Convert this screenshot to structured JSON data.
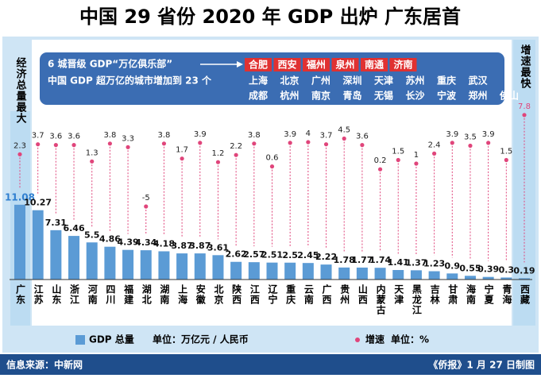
{
  "chart_data": {
    "type": "bar",
    "title": "中国 29 省份 2020 年 GDP 出炉  广东居首",
    "categories": [
      "广东",
      "江苏",
      "山东",
      "浙江",
      "河南",
      "四川",
      "福建",
      "湖北",
      "湖南",
      "上海",
      "安徽",
      "北京",
      "陕西",
      "江西",
      "辽宁",
      "重庆",
      "云南",
      "广西",
      "贵州",
      "山西",
      "内蒙古",
      "天津",
      "黑龙江",
      "吉林",
      "甘肃",
      "海南",
      "宁夏",
      "青海",
      "西藏"
    ],
    "series": [
      {
        "name": "GDP 总量",
        "unit": "单位：万亿元 / 人民币",
        "color": "#5b9bd5",
        "values": [
          11.08,
          10.27,
          7.31,
          6.46,
          5.5,
          4.86,
          4.39,
          4.34,
          4.18,
          3.87,
          3.87,
          3.61,
          2.62,
          2.57,
          2.51,
          2.5,
          2.45,
          2.22,
          1.78,
          1.77,
          1.74,
          1.41,
          1.37,
          1.23,
          0.9,
          0.55,
          0.39,
          0.3,
          0.19
        ]
      },
      {
        "name": "增速",
        "unit": "单位：%",
        "color": "#e0457b",
        "values": [
          2.3,
          3.7,
          3.6,
          3.6,
          1.3,
          3.8,
          3.3,
          -5,
          3.8,
          1.7,
          3.9,
          1.2,
          2.2,
          3.8,
          0.6,
          3.9,
          4,
          3.7,
          4.5,
          3.6,
          0.2,
          1.5,
          1,
          2.4,
          3.9,
          3.5,
          3.9,
          1.5,
          7.8
        ]
      }
    ],
    "highlight_left": "经济总量最大",
    "highlight_right": "增速最快",
    "callout": {
      "headline": "6 城晋级 GDP“万亿俱乐部”",
      "subline": "中国 GDP 超万亿的城市增加到 23 个",
      "new_cities": [
        "合肥",
        "西安",
        "福州",
        "泉州",
        "南通",
        "济南"
      ],
      "other_cities": [
        [
          "上海",
          "北京",
          "广州",
          "深圳",
          "天津",
          "苏州",
          "重庆",
          "武汉"
        ],
        [
          "成都",
          "杭州",
          "南京",
          "青岛",
          "无锡",
          "长沙",
          "宁波",
          "郑州",
          "佛山"
        ]
      ]
    },
    "source": "信息来源：中新网",
    "credit": "《侨报》1 月 27 日制图"
  }
}
